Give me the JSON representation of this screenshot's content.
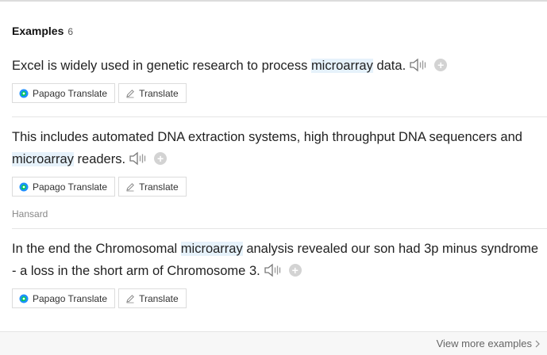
{
  "header": {
    "title": "Examples",
    "count": "6"
  },
  "buttons": {
    "papago": "Papago Translate",
    "translate": "Translate"
  },
  "icons": {
    "speaker": "speaker-icon",
    "add": "plus-icon",
    "papago": "papago-logo-icon",
    "pencil": "pencil-icon",
    "chevron": "chevron-right-icon"
  },
  "colors": {
    "highlight": "#e6f2fb",
    "papago_green": "#03c75a",
    "papago_blue": "#1e90ff"
  },
  "examples": [
    {
      "pre": "Excel is widely used in genetic research to process ",
      "term": "microarray",
      "post": " data.",
      "source": ""
    },
    {
      "pre": "This includes automated DNA extraction systems, high throughput DNA sequencers and ",
      "term": "microarray",
      "post": " readers.",
      "source": "Hansard"
    },
    {
      "pre": "In the end the Chromosomal ",
      "term": "microarray",
      "post": " analysis revealed our son had 3p minus syndrome - a loss in the short arm of Chromosome 3.",
      "source": ""
    }
  ],
  "footer": {
    "view_more": "View more examples"
  }
}
